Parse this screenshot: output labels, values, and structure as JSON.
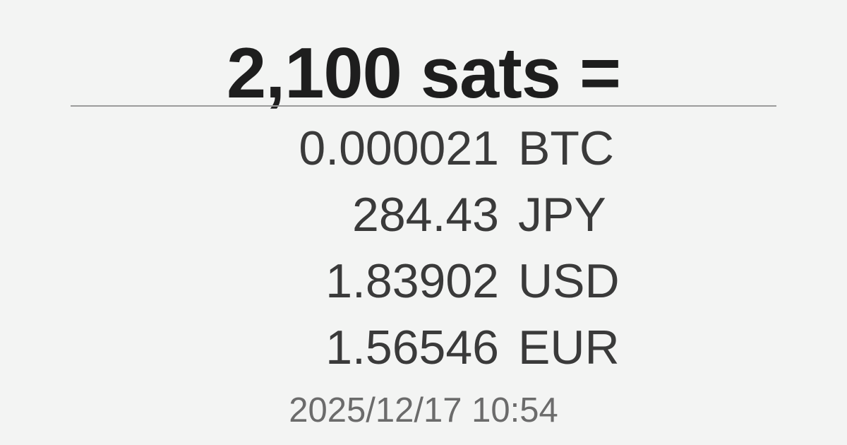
{
  "page": {
    "title": "2,100 sats =",
    "colors": {
      "background": "#f3f4f3",
      "title-text": "#1e1e1e",
      "divider": "#9b9b9b",
      "amount-text": "#3a3a3a",
      "timestamp-text": "#6b6b6b"
    }
  },
  "conversions": [
    {
      "amount": "0.000021",
      "currency": "BTC"
    },
    {
      "amount": "284.43",
      "currency": "JPY"
    },
    {
      "amount": "1.83902",
      "currency": "USD"
    },
    {
      "amount": "1.56546",
      "currency": "EUR"
    }
  ],
  "timestamp": "2025/12/17 10:54"
}
